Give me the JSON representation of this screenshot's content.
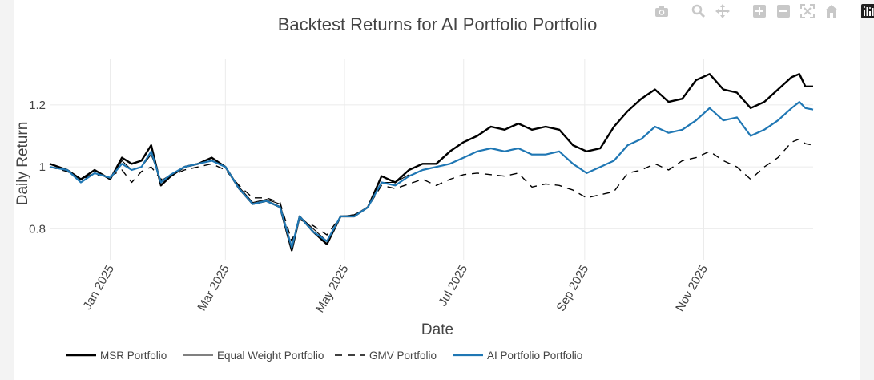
{
  "modebar": {
    "icons": [
      "camera-icon",
      "zoom-icon",
      "pan-icon",
      "zoom-in-icon",
      "zoom-out-icon",
      "autoscale-icon",
      "reset-axes-icon",
      "plotly-logo-icon"
    ]
  },
  "chart_data": {
    "type": "line",
    "title": "Backtest Returns for AI Portfolio Portfolio",
    "xlabel": "Date",
    "ylabel": "Daily Return",
    "x_ticks": [
      "Jan 2025",
      "Mar 2025",
      "May 2025",
      "Jul 2025",
      "Sep 2025",
      "Nov 2025"
    ],
    "x_tick_dates": [
      "2025-01-01",
      "2025-03-01",
      "2025-05-01",
      "2025-07-01",
      "2025-09-01",
      "2025-11-01"
    ],
    "y_ticks": [
      "0.8",
      "1",
      "1.2"
    ],
    "y_tick_values": [
      0.8,
      1.0,
      1.2
    ],
    "xlim": [
      "2024-12-01",
      "2025-12-27"
    ],
    "ylim": [
      0.7,
      1.35
    ],
    "grid": true,
    "legend_position": "bottom",
    "series": [
      {
        "name": "MSR Portfolio",
        "color": "#000000",
        "dash": "solid",
        "points": [
          [
            "2024-12-01",
            1.01
          ],
          [
            "2024-12-10",
            0.99
          ],
          [
            "2024-12-17",
            0.96
          ],
          [
            "2024-12-24",
            0.99
          ],
          [
            "2025-01-01",
            0.96
          ],
          [
            "2025-01-07",
            1.03
          ],
          [
            "2025-01-12",
            1.01
          ],
          [
            "2025-01-17",
            1.02
          ],
          [
            "2025-01-22",
            1.07
          ],
          [
            "2025-01-27",
            0.94
          ],
          [
            "2025-02-01",
            0.97
          ],
          [
            "2025-02-08",
            1.0
          ],
          [
            "2025-02-15",
            1.01
          ],
          [
            "2025-02-22",
            1.03
          ],
          [
            "2025-03-01",
            1.0
          ],
          [
            "2025-03-08",
            0.93
          ],
          [
            "2025-03-15",
            0.88
          ],
          [
            "2025-03-22",
            0.89
          ],
          [
            "2025-03-29",
            0.87
          ],
          [
            "2025-04-04",
            0.73
          ],
          [
            "2025-04-08",
            0.84
          ],
          [
            "2025-04-15",
            0.79
          ],
          [
            "2025-04-22",
            0.75
          ],
          [
            "2025-04-29",
            0.84
          ],
          [
            "2025-05-06",
            0.84
          ],
          [
            "2025-05-13",
            0.87
          ],
          [
            "2025-05-20",
            0.97
          ],
          [
            "2025-05-27",
            0.95
          ],
          [
            "2025-06-03",
            0.99
          ],
          [
            "2025-06-10",
            1.01
          ],
          [
            "2025-06-17",
            1.01
          ],
          [
            "2025-06-24",
            1.05
          ],
          [
            "2025-07-01",
            1.08
          ],
          [
            "2025-07-08",
            1.1
          ],
          [
            "2025-07-15",
            1.13
          ],
          [
            "2025-07-22",
            1.12
          ],
          [
            "2025-07-29",
            1.14
          ],
          [
            "2025-08-05",
            1.12
          ],
          [
            "2025-08-12",
            1.13
          ],
          [
            "2025-08-19",
            1.12
          ],
          [
            "2025-08-26",
            1.07
          ],
          [
            "2025-09-02",
            1.05
          ],
          [
            "2025-09-09",
            1.06
          ],
          [
            "2025-09-16",
            1.13
          ],
          [
            "2025-09-23",
            1.18
          ],
          [
            "2025-09-30",
            1.22
          ],
          [
            "2025-10-07",
            1.25
          ],
          [
            "2025-10-14",
            1.21
          ],
          [
            "2025-10-21",
            1.22
          ],
          [
            "2025-10-28",
            1.28
          ],
          [
            "2025-11-04",
            1.3
          ],
          [
            "2025-11-11",
            1.25
          ],
          [
            "2025-11-18",
            1.24
          ],
          [
            "2025-11-25",
            1.19
          ],
          [
            "2025-12-02",
            1.21
          ],
          [
            "2025-12-09",
            1.25
          ],
          [
            "2025-12-16",
            1.29
          ],
          [
            "2025-12-20",
            1.3
          ],
          [
            "2025-12-23",
            1.26
          ],
          [
            "2025-12-27",
            1.26
          ]
        ]
      },
      {
        "name": "Equal Weight Portfolio",
        "color": "#000000",
        "dash": "thin",
        "points": [
          [
            "2024-12-01",
            1.01
          ],
          [
            "2024-12-10",
            0.99
          ],
          [
            "2024-12-17",
            0.96
          ],
          [
            "2024-12-24",
            0.98
          ],
          [
            "2025-01-01",
            0.965
          ],
          [
            "2025-01-07",
            1.02
          ],
          [
            "2025-01-12",
            0.99
          ],
          [
            "2025-01-17",
            1.0
          ],
          [
            "2025-01-22",
            1.04
          ],
          [
            "2025-01-27",
            0.955
          ],
          [
            "2025-02-01",
            0.975
          ],
          [
            "2025-02-08",
            1.0
          ],
          [
            "2025-02-15",
            1.01
          ],
          [
            "2025-02-22",
            1.02
          ],
          [
            "2025-03-01",
            1.0
          ],
          [
            "2025-03-08",
            0.935
          ],
          [
            "2025-03-15",
            0.885
          ],
          [
            "2025-03-22",
            0.895
          ],
          [
            "2025-03-29",
            0.88
          ],
          [
            "2025-04-04",
            0.74
          ],
          [
            "2025-04-08",
            0.84
          ],
          [
            "2025-04-15",
            0.8
          ],
          [
            "2025-04-22",
            0.76
          ],
          [
            "2025-04-29",
            0.84
          ],
          [
            "2025-05-06",
            0.845
          ],
          [
            "2025-05-13",
            0.87
          ],
          [
            "2025-05-20",
            0.95
          ],
          [
            "2025-05-27",
            0.95
          ],
          [
            "2025-06-03",
            0.975
          ]
        ]
      },
      {
        "name": "GMV Portfolio",
        "color": "#000000",
        "dash": "dash",
        "points": [
          [
            "2024-12-01",
            1.0
          ],
          [
            "2024-12-10",
            0.985
          ],
          [
            "2024-12-17",
            0.96
          ],
          [
            "2024-12-24",
            0.975
          ],
          [
            "2025-01-01",
            0.97
          ],
          [
            "2025-01-07",
            0.99
          ],
          [
            "2025-01-12",
            0.95
          ],
          [
            "2025-01-17",
            0.985
          ],
          [
            "2025-01-22",
            1.0
          ],
          [
            "2025-01-27",
            0.96
          ],
          [
            "2025-02-01",
            0.97
          ],
          [
            "2025-02-08",
            0.99
          ],
          [
            "2025-02-15",
            1.0
          ],
          [
            "2025-02-22",
            1.01
          ],
          [
            "2025-03-01",
            0.99
          ],
          [
            "2025-03-08",
            0.94
          ],
          [
            "2025-03-15",
            0.9
          ],
          [
            "2025-03-22",
            0.9
          ],
          [
            "2025-03-29",
            0.885
          ],
          [
            "2025-04-04",
            0.76
          ],
          [
            "2025-04-08",
            0.83
          ],
          [
            "2025-04-15",
            0.81
          ],
          [
            "2025-04-22",
            0.78
          ],
          [
            "2025-04-29",
            0.84
          ],
          [
            "2025-05-06",
            0.845
          ],
          [
            "2025-05-13",
            0.87
          ],
          [
            "2025-05-20",
            0.94
          ],
          [
            "2025-05-27",
            0.93
          ],
          [
            "2025-06-03",
            0.945
          ],
          [
            "2025-06-10",
            0.96
          ],
          [
            "2025-06-17",
            0.94
          ],
          [
            "2025-06-24",
            0.96
          ],
          [
            "2025-07-01",
            0.975
          ],
          [
            "2025-07-08",
            0.98
          ],
          [
            "2025-07-15",
            0.975
          ],
          [
            "2025-07-22",
            0.97
          ],
          [
            "2025-07-29",
            0.98
          ],
          [
            "2025-08-05",
            0.935
          ],
          [
            "2025-08-12",
            0.945
          ],
          [
            "2025-08-19",
            0.94
          ],
          [
            "2025-08-26",
            0.925
          ],
          [
            "2025-09-02",
            0.9
          ],
          [
            "2025-09-09",
            0.91
          ],
          [
            "2025-09-16",
            0.92
          ],
          [
            "2025-09-23",
            0.98
          ],
          [
            "2025-09-30",
            0.99
          ],
          [
            "2025-10-07",
            1.01
          ],
          [
            "2025-10-14",
            0.99
          ],
          [
            "2025-10-21",
            1.02
          ],
          [
            "2025-10-28",
            1.03
          ],
          [
            "2025-11-04",
            1.05
          ],
          [
            "2025-11-11",
            1.02
          ],
          [
            "2025-11-18",
            1.0
          ],
          [
            "2025-11-25",
            0.96
          ],
          [
            "2025-12-02",
            1.0
          ],
          [
            "2025-12-09",
            1.03
          ],
          [
            "2025-12-16",
            1.08
          ],
          [
            "2025-12-20",
            1.09
          ],
          [
            "2025-12-23",
            1.075
          ],
          [
            "2025-12-27",
            1.07
          ]
        ]
      },
      {
        "name": "AI Portfolio Portfolio",
        "color": "#1f77b4",
        "dash": "solid",
        "points": [
          [
            "2024-12-01",
            1.0
          ],
          [
            "2024-12-10",
            0.99
          ],
          [
            "2024-12-17",
            0.95
          ],
          [
            "2024-12-24",
            0.98
          ],
          [
            "2025-01-01",
            0.965
          ],
          [
            "2025-01-07",
            1.01
          ],
          [
            "2025-01-12",
            0.99
          ],
          [
            "2025-01-17",
            1.0
          ],
          [
            "2025-01-22",
            1.05
          ],
          [
            "2025-01-27",
            0.95
          ],
          [
            "2025-02-01",
            0.975
          ],
          [
            "2025-02-08",
            1.0
          ],
          [
            "2025-02-15",
            1.01
          ],
          [
            "2025-02-22",
            1.02
          ],
          [
            "2025-03-01",
            1.0
          ],
          [
            "2025-03-08",
            0.93
          ],
          [
            "2025-03-15",
            0.88
          ],
          [
            "2025-03-22",
            0.89
          ],
          [
            "2025-03-29",
            0.87
          ],
          [
            "2025-04-04",
            0.74
          ],
          [
            "2025-04-08",
            0.84
          ],
          [
            "2025-04-15",
            0.79
          ],
          [
            "2025-04-22",
            0.76
          ],
          [
            "2025-04-29",
            0.84
          ],
          [
            "2025-05-06",
            0.84
          ],
          [
            "2025-05-13",
            0.87
          ],
          [
            "2025-05-20",
            0.95
          ],
          [
            "2025-05-27",
            0.94
          ],
          [
            "2025-06-03",
            0.97
          ],
          [
            "2025-06-10",
            0.99
          ],
          [
            "2025-06-17",
            1.0
          ],
          [
            "2025-06-24",
            1.01
          ],
          [
            "2025-07-01",
            1.03
          ],
          [
            "2025-07-08",
            1.05
          ],
          [
            "2025-07-15",
            1.06
          ],
          [
            "2025-07-22",
            1.05
          ],
          [
            "2025-07-29",
            1.06
          ],
          [
            "2025-08-05",
            1.04
          ],
          [
            "2025-08-12",
            1.04
          ],
          [
            "2025-08-19",
            1.05
          ],
          [
            "2025-08-26",
            1.01
          ],
          [
            "2025-09-02",
            0.98
          ],
          [
            "2025-09-09",
            1.0
          ],
          [
            "2025-09-16",
            1.02
          ],
          [
            "2025-09-23",
            1.07
          ],
          [
            "2025-09-30",
            1.09
          ],
          [
            "2025-10-07",
            1.13
          ],
          [
            "2025-10-14",
            1.11
          ],
          [
            "2025-10-21",
            1.12
          ],
          [
            "2025-10-28",
            1.15
          ],
          [
            "2025-11-04",
            1.19
          ],
          [
            "2025-11-11",
            1.15
          ],
          [
            "2025-11-18",
            1.16
          ],
          [
            "2025-11-25",
            1.1
          ],
          [
            "2025-12-02",
            1.12
          ],
          [
            "2025-12-09",
            1.15
          ],
          [
            "2025-12-16",
            1.19
          ],
          [
            "2025-12-20",
            1.21
          ],
          [
            "2025-12-23",
            1.19
          ],
          [
            "2025-12-27",
            1.185
          ]
        ]
      }
    ]
  }
}
